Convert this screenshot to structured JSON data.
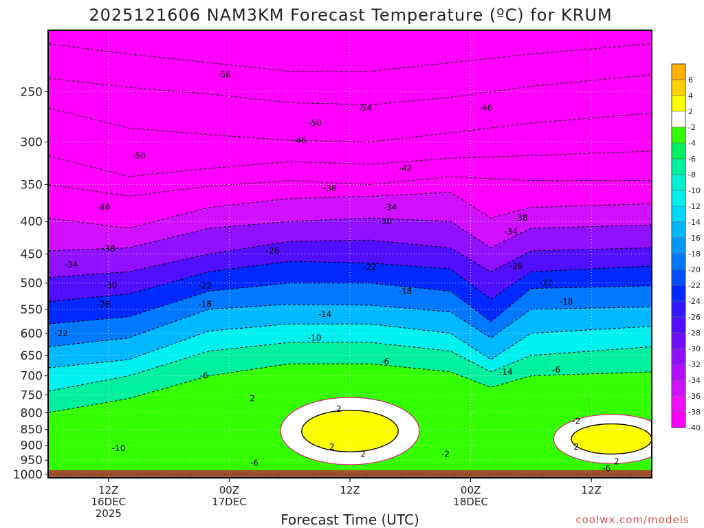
{
  "chart_data": {
    "type": "heatmap",
    "title": "2025121606 NAM3KM Forecast Temperature (ºC) for KRUM",
    "xlabel": "Forecast Time (UTC)",
    "ylabel": "",
    "x_ticks": [
      {
        "hours": 6,
        "lines": [
          "12Z",
          "16DEC",
          "2025"
        ]
      },
      {
        "hours": 18,
        "lines": [
          "00Z",
          "17DEC"
        ]
      },
      {
        "hours": 30,
        "lines": [
          "12Z"
        ]
      },
      {
        "hours": 42,
        "lines": [
          "00Z",
          "18DEC"
        ]
      },
      {
        "hours": 54,
        "lines": [
          "12Z"
        ]
      }
    ],
    "x_range_hours": [
      0,
      60
    ],
    "y_ticks": [
      250,
      300,
      350,
      400,
      450,
      500,
      550,
      600,
      650,
      700,
      750,
      800,
      850,
      900,
      950,
      1000
    ],
    "y_range_hpa": [
      200,
      1013
    ],
    "y_scale": "log pressure",
    "ground_level_hpa": 985,
    "grid": true,
    "colorbar": {
      "ticks": [
        "6",
        "4",
        "2",
        "-2",
        "-4",
        "-6",
        "-8",
        "-10",
        "-12",
        "-14",
        "-16",
        "-18",
        "-20",
        "-22",
        "-24",
        "-26",
        "-28",
        "-30",
        "-32",
        "-34",
        "-36",
        "-38",
        "-40"
      ],
      "colors": [
        "#ffb000",
        "#ffd000",
        "#ffff00",
        "#ffffff",
        "#33ff00",
        "#00f060",
        "#00f0a0",
        "#00f0d0",
        "#00f0f0",
        "#00d8ff",
        "#00b8ff",
        "#0098ff",
        "#0078ff",
        "#0050ff",
        "#0028ff",
        "#3018ff",
        "#5010ff",
        "#7010ff",
        "#9010ff",
        "#b010ff",
        "#d010ff",
        "#f010ff",
        "#ff00ff"
      ]
    },
    "series": [
      {
        "temp_c": -58,
        "points": [
          [
            0,
            210
          ],
          [
            8,
            218
          ],
          [
            16,
            225
          ],
          [
            24,
            232
          ],
          [
            32,
            232
          ],
          [
            40,
            225
          ],
          [
            48,
            218
          ],
          [
            60,
            210
          ]
        ]
      },
      {
        "temp_c": -54,
        "points": [
          [
            0,
            238
          ],
          [
            8,
            246
          ],
          [
            16,
            252
          ],
          [
            24,
            260
          ],
          [
            32,
            262
          ],
          [
            40,
            255
          ],
          [
            48,
            245
          ],
          [
            60,
            235
          ]
        ]
      },
      {
        "temp_c": -50,
        "points": [
          [
            0,
            265
          ],
          [
            8,
            285
          ],
          [
            16,
            292
          ],
          [
            24,
            298
          ],
          [
            32,
            300
          ],
          [
            40,
            290
          ],
          [
            48,
            280
          ],
          [
            60,
            270
          ]
        ]
      },
      {
        "temp_c": -46,
        "points": [
          [
            0,
            315
          ],
          [
            8,
            340
          ],
          [
            16,
            330
          ],
          [
            24,
            322
          ],
          [
            32,
            325
          ],
          [
            40,
            318
          ],
          [
            48,
            315
          ],
          [
            60,
            310
          ]
        ]
      },
      {
        "temp_c": -42,
        "points": [
          [
            0,
            350
          ],
          [
            8,
            365
          ],
          [
            16,
            352
          ],
          [
            24,
            345
          ],
          [
            32,
            350
          ],
          [
            40,
            340
          ],
          [
            48,
            345
          ],
          [
            60,
            345
          ]
        ]
      },
      {
        "temp_c": -38,
        "points": [
          [
            0,
            395
          ],
          [
            8,
            410
          ],
          [
            16,
            380
          ],
          [
            24,
            368
          ],
          [
            32,
            365
          ],
          [
            40,
            360
          ],
          [
            44,
            395
          ],
          [
            48,
            380
          ],
          [
            60,
            375
          ]
        ]
      },
      {
        "temp_c": -34,
        "points": [
          [
            0,
            445
          ],
          [
            8,
            440
          ],
          [
            16,
            410
          ],
          [
            24,
            400
          ],
          [
            32,
            395
          ],
          [
            40,
            400
          ],
          [
            44,
            440
          ],
          [
            48,
            410
          ],
          [
            60,
            405
          ]
        ]
      },
      {
        "temp_c": -30,
        "points": [
          [
            0,
            490
          ],
          [
            8,
            480
          ],
          [
            16,
            450
          ],
          [
            24,
            430
          ],
          [
            32,
            428
          ],
          [
            40,
            440
          ],
          [
            44,
            480
          ],
          [
            48,
            445
          ],
          [
            60,
            440
          ]
        ]
      },
      {
        "temp_c": -26,
        "points": [
          [
            0,
            535
          ],
          [
            8,
            520
          ],
          [
            16,
            480
          ],
          [
            24,
            462
          ],
          [
            32,
            465
          ],
          [
            40,
            475
          ],
          [
            44,
            530
          ],
          [
            48,
            480
          ],
          [
            60,
            470
          ]
        ]
      },
      {
        "temp_c": -22,
        "points": [
          [
            0,
            580
          ],
          [
            8,
            565
          ],
          [
            16,
            515
          ],
          [
            24,
            500
          ],
          [
            32,
            500
          ],
          [
            40,
            515
          ],
          [
            44,
            575
          ],
          [
            48,
            510
          ],
          [
            60,
            505
          ]
        ]
      },
      {
        "temp_c": -18,
        "points": [
          [
            0,
            630
          ],
          [
            8,
            610
          ],
          [
            16,
            550
          ],
          [
            24,
            540
          ],
          [
            32,
            542
          ],
          [
            40,
            555
          ],
          [
            44,
            610
          ],
          [
            48,
            550
          ],
          [
            60,
            545
          ]
        ]
      },
      {
        "temp_c": -14,
        "points": [
          [
            0,
            680
          ],
          [
            8,
            660
          ],
          [
            16,
            595
          ],
          [
            24,
            580
          ],
          [
            32,
            580
          ],
          [
            40,
            600
          ],
          [
            44,
            660
          ],
          [
            48,
            600
          ],
          [
            60,
            585
          ]
        ]
      },
      {
        "temp_c": -10,
        "points": [
          [
            0,
            740
          ],
          [
            8,
            700
          ],
          [
            16,
            640
          ],
          [
            24,
            620
          ],
          [
            32,
            620
          ],
          [
            40,
            640
          ],
          [
            44,
            690
          ],
          [
            48,
            650
          ],
          [
            60,
            630
          ]
        ]
      },
      {
        "temp_c": -6,
        "points": [
          [
            0,
            800
          ],
          [
            8,
            760
          ],
          [
            16,
            700
          ],
          [
            24,
            670
          ],
          [
            32,
            670
          ],
          [
            40,
            690
          ],
          [
            44,
            730
          ],
          [
            48,
            700
          ],
          [
            60,
            690
          ]
        ]
      }
    ],
    "warm_regions": [
      {
        "temp_c": 2,
        "center": [
          30,
          855
        ],
        "width_hours": 12,
        "height_hpa": 160
      },
      {
        "temp_c": 2,
        "center": [
          56,
          880
        ],
        "width_hours": 10,
        "height_hpa": 120
      }
    ],
    "annotations": [
      {
        "text": "-58",
        "x": 17.5,
        "p": 235
      },
      {
        "text": "-54",
        "x": 31.5,
        "p": 265
      },
      {
        "text": "-50",
        "x": 9,
        "p": 315
      },
      {
        "text": "-50",
        "x": 26.5,
        "p": 280
      },
      {
        "text": "-46",
        "x": 43.5,
        "p": 265
      },
      {
        "text": "-46",
        "x": 5.5,
        "p": 380
      },
      {
        "text": "-46",
        "x": 25,
        "p": 298
      },
      {
        "text": "-42",
        "x": 35.5,
        "p": 330
      },
      {
        "text": "-38",
        "x": 6,
        "p": 442
      },
      {
        "text": "-38",
        "x": 28,
        "p": 355
      },
      {
        "text": "-38",
        "x": 47,
        "p": 395
      },
      {
        "text": "-34",
        "x": 2.3,
        "p": 468
      },
      {
        "text": "-34",
        "x": 34,
        "p": 380
      },
      {
        "text": "-34",
        "x": 46,
        "p": 415
      },
      {
        "text": "-30",
        "x": 6.2,
        "p": 505
      },
      {
        "text": "-30",
        "x": 33.5,
        "p": 400
      },
      {
        "text": "-26",
        "x": 22.3,
        "p": 445
      },
      {
        "text": "-26",
        "x": 5.5,
        "p": 540
      },
      {
        "text": "-26",
        "x": 46.5,
        "p": 470
      },
      {
        "text": "-22",
        "x": 1.3,
        "p": 600
      },
      {
        "text": "-22",
        "x": 15.6,
        "p": 505
      },
      {
        "text": "-22",
        "x": 32,
        "p": 472
      },
      {
        "text": "-22",
        "x": 49.5,
        "p": 500
      },
      {
        "text": "-18",
        "x": 15.6,
        "p": 540
      },
      {
        "text": "-18",
        "x": 35.5,
        "p": 515
      },
      {
        "text": "-18",
        "x": 51.5,
        "p": 535
      },
      {
        "text": "-14",
        "x": 27.5,
        "p": 560
      },
      {
        "text": "-14",
        "x": 45.5,
        "p": 690
      },
      {
        "text": "-10",
        "x": 7,
        "p": 910
      },
      {
        "text": "-10",
        "x": 26.5,
        "p": 610
      },
      {
        "text": "-6",
        "x": 15.5,
        "p": 700
      },
      {
        "text": "-6",
        "x": 33.5,
        "p": 665
      },
      {
        "text": "-6",
        "x": 50.5,
        "p": 685
      },
      {
        "text": "-6",
        "x": 20.5,
        "p": 960
      },
      {
        "text": "-6",
        "x": 55.5,
        "p": 980
      },
      {
        "text": "2",
        "x": 20.3,
        "p": 760
      },
      {
        "text": "2",
        "x": 28.9,
        "p": 790
      },
      {
        "text": "2",
        "x": 28.2,
        "p": 905
      },
      {
        "text": "2",
        "x": 31.3,
        "p": 930
      },
      {
        "text": "-2",
        "x": 39.5,
        "p": 930
      },
      {
        "text": "-2",
        "x": 52.5,
        "p": 825
      },
      {
        "text": "2",
        "x": 52.5,
        "p": 905
      },
      {
        "text": "2",
        "x": 56.5,
        "p": 955
      }
    ]
  },
  "credit": "coolwx.com/models"
}
